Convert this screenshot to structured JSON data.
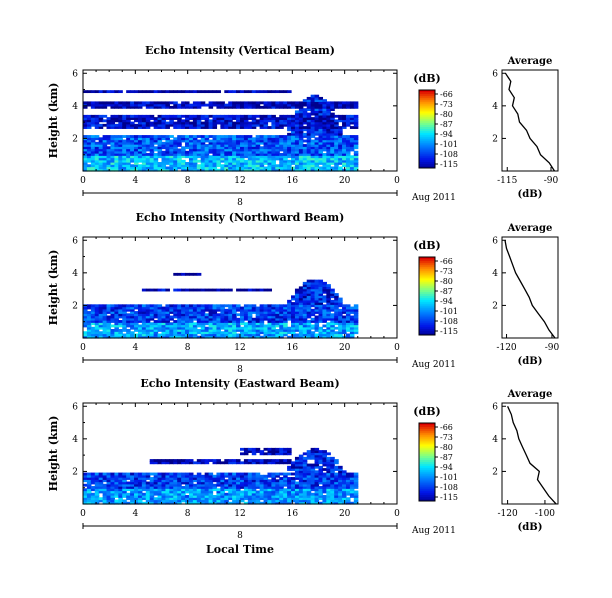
{
  "chart_data": [
    {
      "type": "heatmap",
      "title": "Echo Intensity (Vertical Beam)",
      "ylabel": "Height (km)",
      "x_ticks": [
        "0",
        "4",
        "8",
        "12",
        "16",
        "20",
        "0"
      ],
      "y_ticks": [
        "2",
        "4",
        "6"
      ],
      "xlim": [
        0,
        24
      ],
      "ylim": [
        0,
        6.2
      ],
      "date_axis": {
        "tick_label": "8",
        "date_label": "Aug 2011"
      },
      "colorbar": {
        "unit": "(dB)",
        "ticks": [
          "-66",
          "-73",
          "-80",
          "-87",
          "-94",
          "-101",
          "-108",
          "-115"
        ],
        "range": [
          -115,
          -66
        ]
      },
      "layers": [
        {
          "y_bottom": 0.0,
          "y_top": 1.0,
          "x_start": 0,
          "x_end": 21,
          "db": -96
        },
        {
          "y_bottom": 1.0,
          "y_top": 2.2,
          "x_start": 0,
          "x_end": 21,
          "db": -104
        },
        {
          "y_bottom": 2.6,
          "y_top": 3.5,
          "x_start": 0,
          "x_end": 21,
          "db": -111
        },
        {
          "y_bottom": 3.9,
          "y_top": 4.3,
          "x_start": 0,
          "x_end": 21,
          "db": -113
        },
        {
          "y_bottom": 4.8,
          "y_top": 5.0,
          "x_start": 0,
          "x_end": 16,
          "db": -114
        }
      ],
      "bump": {
        "x_start": 15.5,
        "x_end": 20,
        "y_top": 4.7
      },
      "profile": {
        "title": "Average",
        "xlabel": "(dB)",
        "x_ticks": [
          "-115",
          "-90"
        ],
        "y_ticks": [
          "2",
          "4",
          "6"
        ],
        "xlim": [
          -118,
          -86
        ],
        "ylim": [
          0,
          6.2
        ],
        "height": [
          0,
          0.5,
          1.0,
          1.5,
          2.0,
          2.5,
          3.0,
          3.5,
          4.0,
          4.5,
          5.0,
          5.5,
          6.0
        ],
        "db": [
          -88,
          -91,
          -96,
          -98,
          -102,
          -104,
          -108,
          -109,
          -112,
          -111,
          -114,
          -113,
          -116
        ]
      }
    },
    {
      "type": "heatmap",
      "title": "Echo Intensity (Northward Beam)",
      "ylabel": "Height (km)",
      "x_ticks": [
        "0",
        "4",
        "8",
        "12",
        "16",
        "20",
        "0"
      ],
      "y_ticks": [
        "2",
        "4",
        "6"
      ],
      "xlim": [
        0,
        24
      ],
      "ylim": [
        0,
        6.2
      ],
      "date_axis": {
        "tick_label": "8",
        "date_label": "Aug 2011"
      },
      "colorbar": {
        "unit": "(dB)",
        "ticks": [
          "-66",
          "-73",
          "-80",
          "-87",
          "-94",
          "-101",
          "-108",
          "-115"
        ],
        "range": [
          -115,
          -66
        ]
      },
      "layers": [
        {
          "y_bottom": 0.0,
          "y_top": 1.0,
          "x_start": 0,
          "x_end": 21,
          "db": -98
        },
        {
          "y_bottom": 1.0,
          "y_top": 2.0,
          "x_start": 0,
          "x_end": 21,
          "db": -106
        },
        {
          "y_bottom": 2.9,
          "y_top": 3.1,
          "x_start": 4.5,
          "x_end": 14.5,
          "db": -113
        },
        {
          "y_bottom": 3.8,
          "y_top": 4.0,
          "x_start": 7,
          "x_end": 9,
          "db": -114
        }
      ],
      "bump": {
        "x_start": 15.5,
        "x_end": 20,
        "y_top": 3.6
      },
      "profile": {
        "title": "Average",
        "xlabel": "(dB)",
        "x_ticks": [
          "-120",
          "-90"
        ],
        "y_ticks": [
          "2",
          "4",
          "6"
        ],
        "xlim": [
          -123,
          -86
        ],
        "ylim": [
          0,
          6.2
        ],
        "height": [
          0,
          0.5,
          1.0,
          1.5,
          2.0,
          2.5,
          3.0,
          3.5,
          4.0,
          4.5,
          5.0,
          5.5,
          6.0
        ],
        "db": [
          -88,
          -92,
          -95,
          -99,
          -103,
          -105,
          -108,
          -111,
          -114,
          -116,
          -118,
          -120,
          -121
        ]
      }
    },
    {
      "type": "heatmap",
      "title": "Echo Intensity (Eastward Beam)",
      "ylabel": "Height (km)",
      "x_ticks": [
        "0",
        "4",
        "8",
        "12",
        "16",
        "20",
        "0"
      ],
      "y_ticks": [
        "2",
        "4",
        "6"
      ],
      "xlim": [
        0,
        24
      ],
      "ylim": [
        0,
        6.2
      ],
      "date_axis": {
        "tick_label": "8",
        "date_label": "Aug 2011"
      },
      "xlabel": "Local Time",
      "colorbar": {
        "unit": "(dB)",
        "ticks": [
          "-66",
          "-73",
          "-80",
          "-87",
          "-94",
          "-101",
          "-108",
          "-115"
        ],
        "range": [
          -115,
          -66
        ]
      },
      "layers": [
        {
          "y_bottom": 0.0,
          "y_top": 1.0,
          "x_start": 0,
          "x_end": 21,
          "db": -99
        },
        {
          "y_bottom": 1.0,
          "y_top": 1.9,
          "x_start": 0,
          "x_end": 21,
          "db": -106
        },
        {
          "y_bottom": 2.5,
          "y_top": 2.8,
          "x_start": 5,
          "x_end": 16,
          "db": -113
        },
        {
          "y_bottom": 3.0,
          "y_top": 3.4,
          "x_start": 12,
          "x_end": 16,
          "db": -113
        }
      ],
      "bump": {
        "x_start": 15.5,
        "x_end": 20,
        "y_top": 3.4
      },
      "profile": {
        "title": "Average",
        "xlabel": "(dB)",
        "x_ticks": [
          "-120",
          "-100"
        ],
        "y_ticks": [
          "2",
          "4",
          "6"
        ],
        "xlim": [
          -123,
          -93
        ],
        "ylim": [
          0,
          6.2
        ],
        "height": [
          0,
          0.5,
          1.0,
          1.5,
          2.0,
          2.5,
          3.0,
          3.5,
          4.0,
          4.5,
          5.0,
          5.5,
          6.0
        ],
        "db": [
          -94,
          -98,
          -101,
          -104,
          -103,
          -108,
          -110,
          -112,
          -114,
          -115,
          -117,
          -118,
          -120
        ]
      }
    }
  ]
}
